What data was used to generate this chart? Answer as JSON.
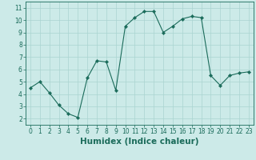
{
  "x": [
    0,
    1,
    2,
    3,
    4,
    5,
    6,
    7,
    8,
    9,
    10,
    11,
    12,
    13,
    14,
    15,
    16,
    17,
    18,
    19,
    20,
    21,
    22,
    23
  ],
  "y": [
    4.5,
    5.0,
    4.1,
    3.1,
    2.4,
    2.1,
    5.3,
    6.7,
    6.6,
    4.3,
    9.5,
    10.2,
    10.7,
    10.7,
    9.0,
    9.5,
    10.1,
    10.3,
    10.2,
    5.5,
    4.7,
    5.5,
    5.7,
    5.8
  ],
  "line_color": "#1a6b5a",
  "marker": "D",
  "marker_size": 2.2,
  "bg_color": "#cceae8",
  "grid_color": "#aad4d0",
  "xlabel": "Humidex (Indice chaleur)",
  "xlim": [
    -0.5,
    23.5
  ],
  "ylim": [
    1.5,
    11.5
  ],
  "yticks": [
    2,
    3,
    4,
    5,
    6,
    7,
    8,
    9,
    10,
    11
  ],
  "xticks": [
    0,
    1,
    2,
    3,
    4,
    5,
    6,
    7,
    8,
    9,
    10,
    11,
    12,
    13,
    14,
    15,
    16,
    17,
    18,
    19,
    20,
    21,
    22,
    23
  ],
  "tick_fontsize": 5.5,
  "xlabel_fontsize": 7.5,
  "xlabel_bold": true
}
